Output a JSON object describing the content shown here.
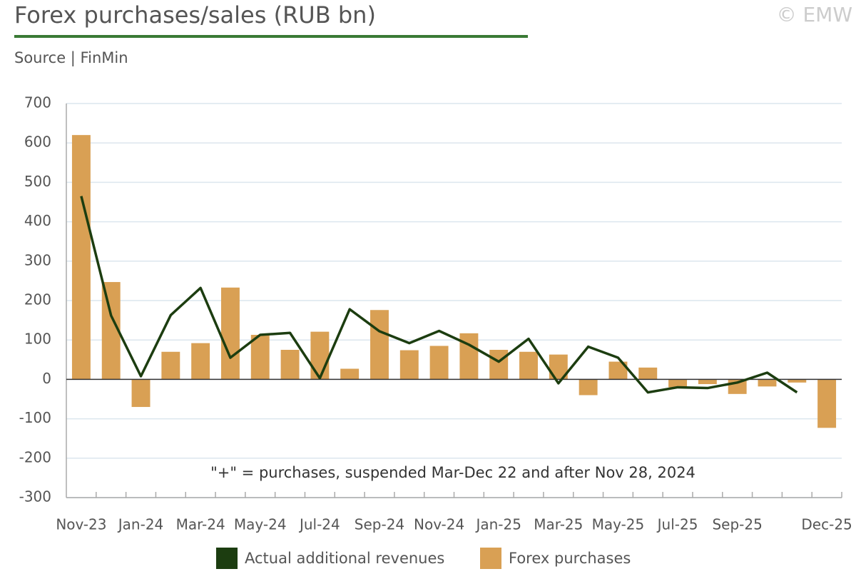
{
  "chart_data": {
    "type": "bar_line",
    "title": "Forex purchases/sales (RUB bn)",
    "subtitle": "Source | FinMin",
    "credit": "© EMW",
    "annotation": "\"+\" = purchases, suspended Mar-Dec 22 and after Nov 28, 2024",
    "categories": [
      "Nov-23",
      null,
      "Jan-24",
      null,
      "Mar-24",
      null,
      "May-24",
      null,
      "Jul-24",
      null,
      "Sep-24",
      null,
      "Nov-24",
      null,
      "Jan-25",
      null,
      "Mar-25",
      null,
      "May-25",
      null,
      "Jul-25",
      null,
      "Sep-25",
      null,
      null,
      "Dec-25"
    ],
    "series": [
      {
        "name": "Actual additional revenues",
        "type": "line",
        "color": "#1c3d10",
        "values": [
          465,
          162,
          8,
          163,
          232,
          55,
          113,
          118,
          3,
          178,
          122,
          92,
          123,
          88,
          45,
          103,
          -10,
          83,
          55,
          -33,
          -20,
          -22,
          -8,
          17,
          -33,
          null
        ]
      },
      {
        "name": "Forex purchases",
        "type": "bar",
        "color": "#d9a054",
        "values": [
          620,
          247,
          -70,
          70,
          92,
          233,
          113,
          75,
          121,
          27,
          176,
          74,
          85,
          117,
          75,
          70,
          63,
          -40,
          45,
          30,
          -20,
          -12,
          -37,
          -18,
          -8,
          -123
        ]
      }
    ],
    "ylim": [
      -300,
      700
    ],
    "yticks": [
      -300,
      -200,
      -100,
      0,
      100,
      200,
      300,
      400,
      500,
      600,
      700
    ],
    "grid": true
  }
}
